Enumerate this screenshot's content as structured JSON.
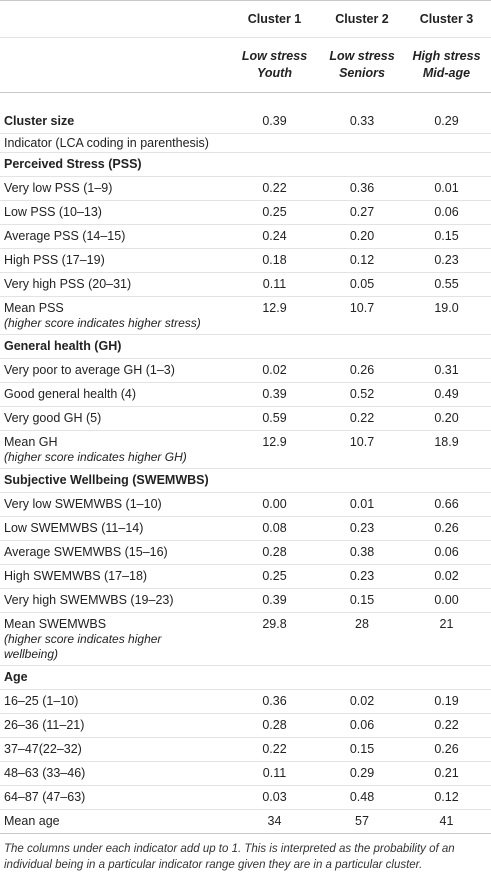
{
  "columns": [
    {
      "cluster": "Cluster 1",
      "l1": "Low stress",
      "l2": "Youth"
    },
    {
      "cluster": "Cluster 2",
      "l1": "Low stress",
      "l2": "Seniors"
    },
    {
      "cluster": "Cluster 3",
      "l1": "High stress",
      "l2": "Mid-age"
    }
  ],
  "rows": {
    "cluster_size": {
      "label": "Cluster size",
      "v": [
        "0.39",
        "0.33",
        "0.29"
      ]
    },
    "indicator_note": "Indicator (LCA coding in parenthesis)",
    "pss": {
      "title": "Perceived Stress (PSS)",
      "items": [
        {
          "label": "Very low PSS (1–9)",
          "v": [
            "0.22",
            "0.36",
            "0.01"
          ]
        },
        {
          "label": "Low PSS (10–13)",
          "v": [
            "0.25",
            "0.27",
            "0.06"
          ]
        },
        {
          "label": "Average PSS (14–15)",
          "v": [
            "0.24",
            "0.20",
            "0.15"
          ]
        },
        {
          "label": "High PSS (17–19)",
          "v": [
            "0.18",
            "0.12",
            "0.23"
          ]
        },
        {
          "label": "Very high PSS (20–31)",
          "v": [
            "0.11",
            "0.05",
            "0.55"
          ]
        }
      ],
      "mean": {
        "label": "Mean PSS",
        "sub": "(higher score indicates higher stress)",
        "v": [
          "12.9",
          "10.7",
          "19.0"
        ]
      }
    },
    "gh": {
      "title": "General health (GH)",
      "items": [
        {
          "label": "Very poor to average GH (1–3)",
          "v": [
            "0.02",
            "0.26",
            "0.31"
          ]
        },
        {
          "label": "Good general health (4)",
          "v": [
            "0.39",
            "0.52",
            "0.49"
          ]
        },
        {
          "label": "Very good GH (5)",
          "v": [
            "0.59",
            "0.22",
            "0.20"
          ]
        }
      ],
      "mean": {
        "label": "Mean GH",
        "sub": "(higher score indicates higher GH)",
        "v": [
          "12.9",
          "10.7",
          "18.9"
        ]
      }
    },
    "swb": {
      "title": "Subjective Wellbeing (SWEMWBS)",
      "items": [
        {
          "label": "Very low SWEMWBS (1–10)",
          "v": [
            "0.00",
            "0.01",
            "0.66"
          ]
        },
        {
          "label": "Low SWEMWBS (11–14)",
          "v": [
            "0.08",
            "0.23",
            "0.26"
          ]
        },
        {
          "label": "Average SWEMWBS (15–16)",
          "v": [
            "0.28",
            "0.38",
            "0.06"
          ]
        },
        {
          "label": "High SWEMWBS (17–18)",
          "v": [
            "0.25",
            "0.23",
            "0.02"
          ]
        },
        {
          "label": "Very high SWEMWBS (19–23)",
          "v": [
            "0.39",
            "0.15",
            "0.00"
          ]
        }
      ],
      "mean": {
        "label": "Mean SWEMWBS",
        "sub1": "(higher score indicates higher",
        "sub2": "wellbeing)",
        "v": [
          "29.8",
          "28",
          "21"
        ]
      }
    },
    "age": {
      "title": "Age",
      "items": [
        {
          "label": "16–25 (1–10)",
          "v": [
            "0.36",
            "0.02",
            "0.19"
          ]
        },
        {
          "label": "26–36 (11–21)",
          "v": [
            "0.28",
            "0.06",
            "0.22"
          ]
        },
        {
          "label": "37–47(22–32)",
          "v": [
            "0.22",
            "0.15",
            "0.26"
          ]
        },
        {
          "label": "48–63 (33–46)",
          "v": [
            "0.11",
            "0.29",
            "0.21"
          ]
        },
        {
          "label": "64–87 (47–63)",
          "v": [
            "0.03",
            "0.48",
            "0.12"
          ]
        }
      ],
      "mean": {
        "label": "Mean age",
        "v": [
          "34",
          "57",
          "41"
        ]
      }
    }
  },
  "footnote": "The columns under each indicator add up to 1. This is interpreted as the probability of an individual being in a particular indicator range given they are in a particular cluster."
}
